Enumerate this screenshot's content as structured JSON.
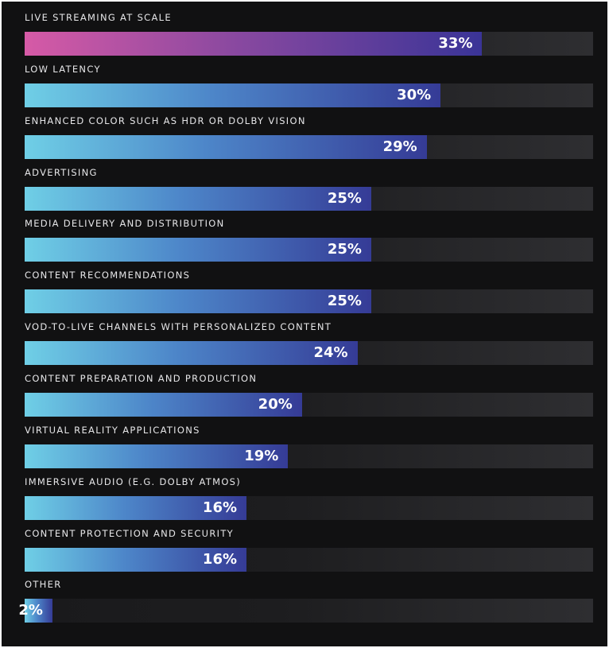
{
  "chart_data": {
    "type": "bar",
    "orientation": "horizontal",
    "categories": [
      "LIVE STREAMING AT SCALE",
      "LOW LATENCY",
      "ENHANCED COLOR SUCH AS HDR OR DOLBY VISION",
      "ADVERTISING",
      "MEDIA DELIVERY AND DISTRIBUTION",
      "CONTENT RECOMMENDATIONS",
      "VOD-TO-LIVE CHANNELS WITH PERSONALIZED CONTENT",
      "CONTENT PREPARATION AND PRODUCTION",
      "VIRTUAL REALITY APPLICATIONS",
      "IMMERSIVE AUDIO (E.G. DOLBY ATMOS)",
      "CONTENT PROTECTION AND SECURITY",
      "OTHER"
    ],
    "values": [
      33,
      30,
      29,
      25,
      25,
      25,
      24,
      20,
      19,
      16,
      16,
      2
    ],
    "value_labels": [
      "33%",
      "30%",
      "29%",
      "25%",
      "25%",
      "25%",
      "24%",
      "20%",
      "19%",
      "16%",
      "16%",
      "2%"
    ],
    "xlim": [
      0,
      41
    ],
    "unit": "%",
    "highlight_index": 0,
    "grid": false,
    "legend": "none"
  },
  "colors": {
    "background": "#111112",
    "bar_gradient_start": "#6fcfe6",
    "bar_gradient_end": "#353b96",
    "highlight_gradient_start": "#d65aa6",
    "highlight_gradient_end": "#3a3497",
    "track": "#2e2e31",
    "label_text": "#e6e6e8",
    "value_text": "#ffffff"
  }
}
